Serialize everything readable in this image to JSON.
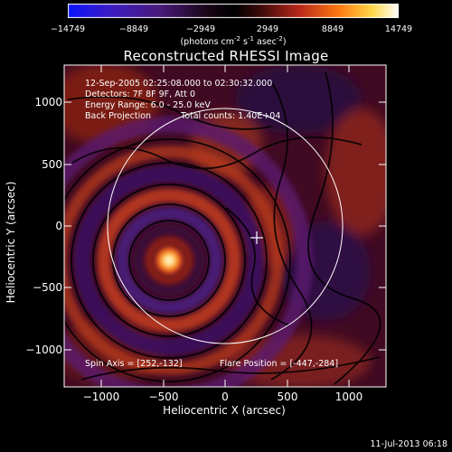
{
  "chart_data": {
    "type": "heatmap",
    "title": "Reconstructed RHESSI Image",
    "xlabel": "Heliocentric X (arcsec)",
    "ylabel": "Heliocentric Y (arcsec)",
    "xlim": [
      -1300,
      1300
    ],
    "ylim": [
      -1300,
      1300
    ],
    "x_ticks": [
      "−1000",
      "−500",
      "0",
      "500",
      "1000"
    ],
    "y_ticks": [
      "1000",
      "500",
      "0",
      "−500",
      "−1000"
    ],
    "colorbar": {
      "ticks": [
        "−14749",
        "−8849",
        "−2949",
        "2949",
        "8849",
        "14749"
      ],
      "range": [
        -14749,
        14749
      ],
      "units_main": "(photons cm",
      "units_rest": [
        "-2",
        " s",
        "-1",
        " asec",
        "-2",
        ")"
      ]
    },
    "annotations": {
      "time_range": "12-Sep-2005 02:25:08.000 to 02:30:32.000",
      "detectors": "Detectors: 7F 8F 9F, Att 0",
      "energy": "Energy Range: 6.0 - 25.0 keV",
      "method": "Back Projection",
      "counts": "Total counts: 1.40E+04",
      "spin_axis": "Spin Axis = [252,-132]",
      "flare_position": "Flare Position = [-447,-284]"
    },
    "source_peak": {
      "x": -447,
      "y": -284
    },
    "spin_axis_point": {
      "x": 252,
      "y": -132
    },
    "solar_radius_arcsec": 955
  },
  "footer": {
    "date": "11-Jul-2013 06:18"
  }
}
